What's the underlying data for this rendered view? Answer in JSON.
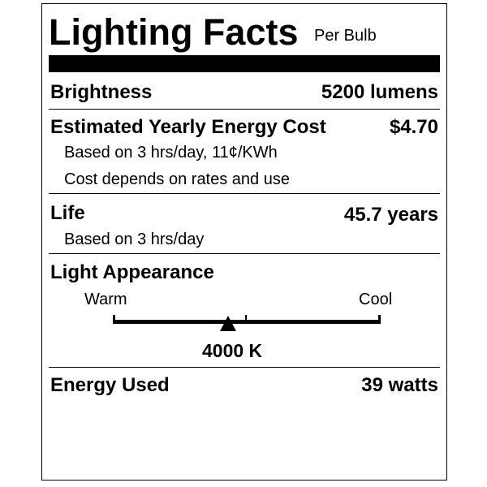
{
  "header": {
    "title": "Lighting Facts",
    "subtitle": "Per Bulb"
  },
  "brightness": {
    "label": "Brightness",
    "value": "5200 lumens"
  },
  "cost": {
    "label": "Estimated Yearly Energy Cost",
    "value": "$4.70",
    "note1": "Based on 3 hrs/day, 11¢/KWh",
    "note2": "Cost depends on rates and use"
  },
  "life": {
    "label": "Life",
    "value": "45.7 years",
    "note": "Based on 3 hrs/day"
  },
  "appearance": {
    "label": "Light Appearance",
    "warm": "Warm",
    "cool": "Cool",
    "value": "4000 K",
    "marker_fraction": 0.43
  },
  "energy": {
    "label": "Energy Used",
    "value": "39 watts"
  }
}
